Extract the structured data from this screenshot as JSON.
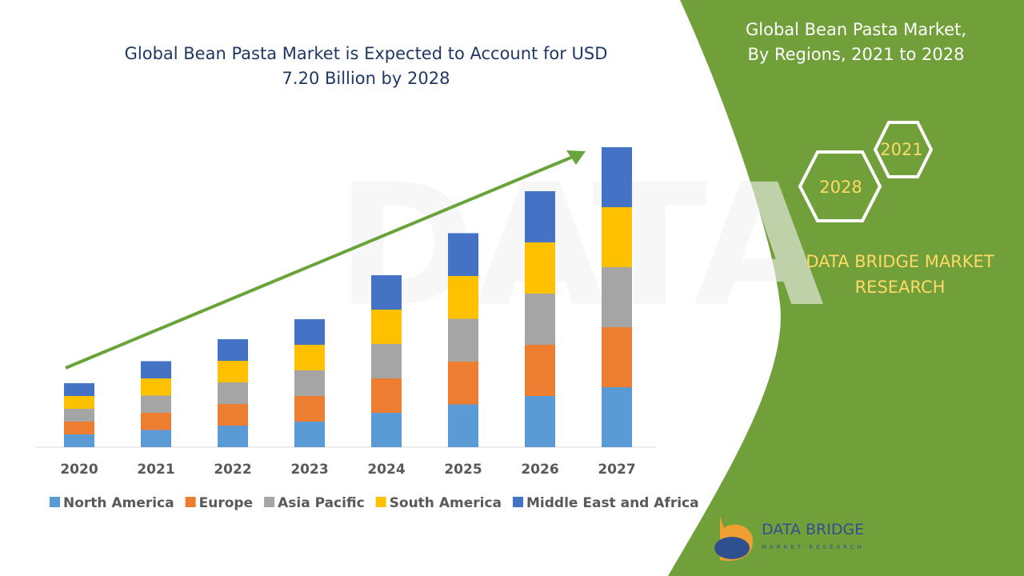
{
  "chart_data": {
    "type": "bar",
    "stacked": true,
    "title": "Global Bean Pasta Market is Expected to Account for USD 7.20 Billion by 2028",
    "categories": [
      "2020",
      "2021",
      "2022",
      "2023",
      "2024",
      "2025",
      "2026",
      "2027"
    ],
    "series": [
      {
        "name": "North America",
        "color": "#5b9bd5",
        "values": [
          0.32,
          0.43,
          0.54,
          0.64,
          0.86,
          1.07,
          1.28,
          1.5
        ]
      },
      {
        "name": "Europe",
        "color": "#ed7d31",
        "values": [
          0.32,
          0.43,
          0.54,
          0.64,
          0.86,
          1.07,
          1.28,
          1.5
        ]
      },
      {
        "name": "Asia Pacific",
        "color": "#a5a5a5",
        "values": [
          0.32,
          0.43,
          0.54,
          0.64,
          0.86,
          1.07,
          1.28,
          1.5
        ]
      },
      {
        "name": "South America",
        "color": "#ffc000",
        "values": [
          0.32,
          0.43,
          0.54,
          0.64,
          0.86,
          1.07,
          1.28,
          1.5
        ]
      },
      {
        "name": "Middle East and Africa",
        "color": "#4472c4",
        "values": [
          0.32,
          0.43,
          0.54,
          0.64,
          0.86,
          1.07,
          1.28,
          1.5
        ]
      }
    ],
    "ylim": [
      0,
      8
    ],
    "legend": "bottom"
  },
  "side_panel": {
    "title": "Global Bean Pasta Market, By Regions, 2021 to 2028",
    "hexagons": [
      "2021",
      "2028"
    ],
    "brand": "DATA BRIDGE MARKET RESEARCH"
  },
  "logo": {
    "name": "DATA BRIDGE",
    "tagline": "MARKET RESEARCH"
  }
}
